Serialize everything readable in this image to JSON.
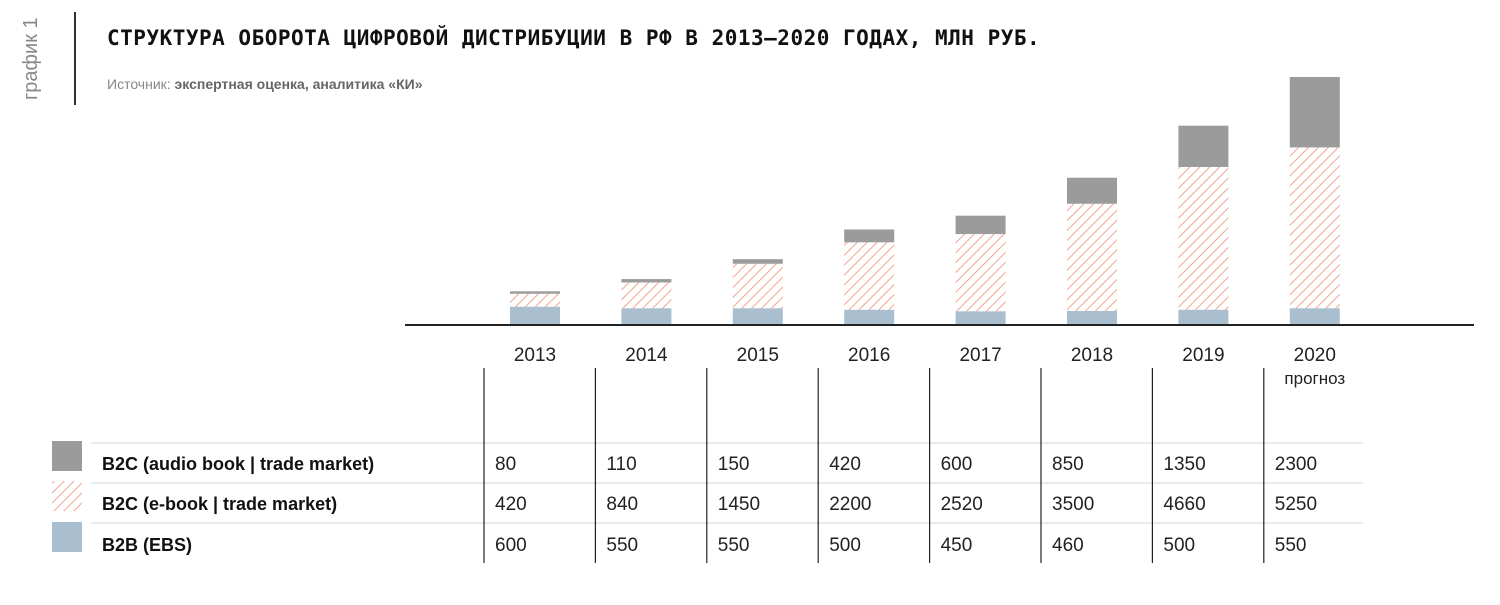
{
  "side_label": "график 1",
  "title": "СТРУКТУРА ОБОРОТА ЦИФРОВОЙ ДИСТРИБУЦИИ В РФ В 2013–2020 ГОДАХ, МЛН РУБ.",
  "source_prefix": "Источник: ",
  "source_text": "экспертная оценка, аналитика «КИ»",
  "chart_data": {
    "type": "bar",
    "stacked": true,
    "categories": [
      "2013",
      "2014",
      "2015",
      "2016",
      "2017",
      "2018",
      "2019",
      "2020"
    ],
    "category_notes": [
      "",
      "",
      "",
      "",
      "",
      "",
      "",
      "прогноз"
    ],
    "series": [
      {
        "name": "B2B (EBS)",
        "values": [
          600,
          550,
          550,
          500,
          450,
          460,
          500,
          550
        ],
        "color": "#a9bfcf",
        "pattern": "solid"
      },
      {
        "name": "B2C (e-book | trade market)",
        "values": [
          420,
          840,
          1450,
          2200,
          2520,
          3500,
          4660,
          5250
        ],
        "color": "#f2a58e",
        "pattern": "hatched"
      },
      {
        "name": "B2C (audio book | trade market)",
        "values": [
          80,
          110,
          150,
          420,
          600,
          850,
          1350,
          2300
        ],
        "color": "#9b9b9b",
        "pattern": "solid"
      }
    ],
    "table_row_order": [
      "B2C (audio book | trade market)",
      "B2C (e-book | trade market)",
      "B2B (EBS)"
    ],
    "ylim": [
      0,
      8100
    ],
    "grid": false,
    "legend": "bottom-left table"
  }
}
